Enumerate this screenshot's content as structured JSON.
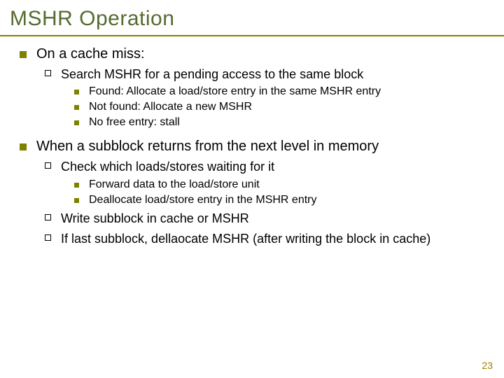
{
  "title": "MSHR Operation",
  "colors": {
    "title": "#556b2f",
    "rule": "#808000",
    "l1_bullet": "#808000",
    "l3_bullet": "#808000",
    "pagenum": "#a08000",
    "text": "#000000",
    "background": "#ffffff"
  },
  "fonts": {
    "title_size": 30,
    "l1_size": 20,
    "l2_size": 18,
    "l3_size": 16,
    "pagenum_size": 14
  },
  "block1": {
    "l1": "On a cache miss:",
    "l2_1": "Search MSHR for a pending access to the same block",
    "l3_1": "Found: Allocate a load/store entry in the same MSHR entry",
    "l3_2": "Not found: Allocate a new MSHR",
    "l3_3": "No free entry: stall"
  },
  "block2": {
    "l1": "When a subblock returns from the next level in memory",
    "l2_1": "Check which loads/stores waiting for it",
    "l3_1": "Forward data to the load/store unit",
    "l3_2": "Deallocate load/store entry in the MSHR entry",
    "l2_2": "Write subblock in cache or MSHR",
    "l2_3": "If last subblock, dellaocate MSHR (after writing the block in cache)"
  },
  "page_number": "23"
}
